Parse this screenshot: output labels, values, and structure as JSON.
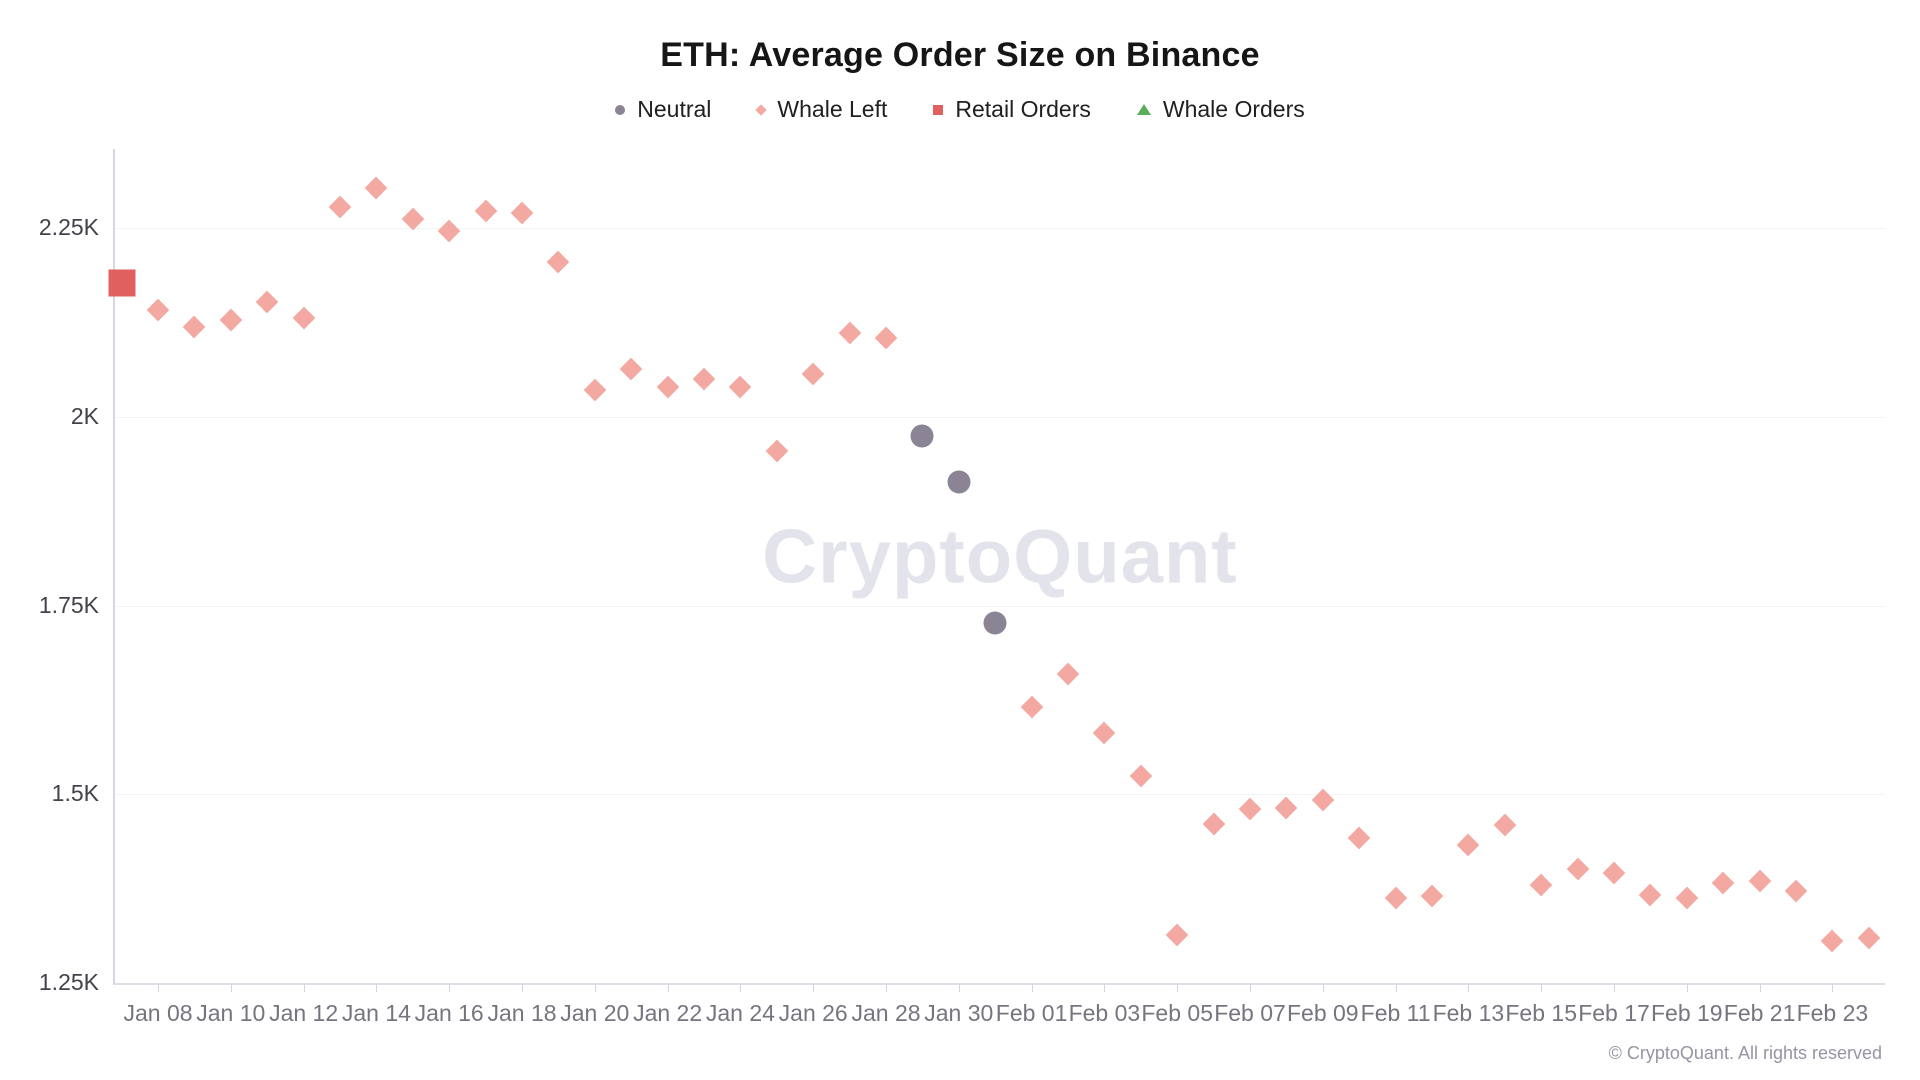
{
  "title": "ETH: Average Order Size on Binance",
  "watermark": "CryptoQuant",
  "footer": {
    "copyright": "© CryptoQuant. All rights reserved"
  },
  "legend": {
    "items": [
      {
        "label": "Neutral",
        "marker": "circle",
        "color": "#8a8494"
      },
      {
        "label": "Whale Left",
        "marker": "diamond",
        "color": "#f3a9a2"
      },
      {
        "label": "Retail Orders",
        "marker": "square",
        "color": "#e06060"
      },
      {
        "label": "Whale Orders",
        "marker": "triangle",
        "color": "#5aad5a"
      }
    ]
  },
  "chart_data": {
    "type": "scatter",
    "title": "ETH: Average Order Size on Binance",
    "ylabel": "",
    "xlabel": "",
    "grid": "horizontal-only",
    "legend_position": "top-center",
    "y_axis": {
      "tick_labels": [
        "2.25K",
        "2K",
        "1.75K",
        "1.5K",
        "1.25K"
      ],
      "tick_values": [
        2250,
        2000,
        1750,
        1500,
        1250
      ],
      "range": [
        1250,
        2355
      ]
    },
    "x_axis": {
      "tick_labels": [
        "Jan 08",
        "Jan 10",
        "Jan 12",
        "Jan 14",
        "Jan 16",
        "Jan 18",
        "Jan 20",
        "Jan 22",
        "Jan 24",
        "Jan 26",
        "Jan 28",
        "Jan 30",
        "Feb 01",
        "Feb 03",
        "Feb 05",
        "Feb 07",
        "Feb 09",
        "Feb 11",
        "Feb 13",
        "Feb 15",
        "Feb 17",
        "Feb 19",
        "Feb 21",
        "Feb 23"
      ],
      "tick_interval_days": 2,
      "data_range": [
        "Jan 07",
        "Feb 24"
      ]
    },
    "series": [
      {
        "name": "Retail Orders",
        "marker": "square",
        "color": "#e06060",
        "points": [
          {
            "date": "Jan 07",
            "value": 2177
          }
        ]
      },
      {
        "name": "Whale Left",
        "marker": "diamond",
        "color": "#f3a9a2",
        "points": [
          {
            "date": "Jan 08",
            "value": 2141
          },
          {
            "date": "Jan 09",
            "value": 2119
          },
          {
            "date": "Jan 10",
            "value": 2128
          },
          {
            "date": "Jan 11",
            "value": 2152
          },
          {
            "date": "Jan 12",
            "value": 2131
          },
          {
            "date": "Jan 13",
            "value": 2278
          },
          {
            "date": "Jan 14",
            "value": 2303
          },
          {
            "date": "Jan 15",
            "value": 2262
          },
          {
            "date": "Jan 16",
            "value": 2246
          },
          {
            "date": "Jan 17",
            "value": 2272
          },
          {
            "date": "Jan 18",
            "value": 2270
          },
          {
            "date": "Jan 19",
            "value": 2205
          },
          {
            "date": "Jan 20",
            "value": 2036
          },
          {
            "date": "Jan 21",
            "value": 2063
          },
          {
            "date": "Jan 22",
            "value": 2039
          },
          {
            "date": "Jan 23",
            "value": 2050
          },
          {
            "date": "Jan 24",
            "value": 2039
          },
          {
            "date": "Jan 25",
            "value": 1955
          },
          {
            "date": "Jan 26",
            "value": 2056
          },
          {
            "date": "Jan 27",
            "value": 2111
          },
          {
            "date": "Jan 28",
            "value": 2104
          },
          {
            "date": "Feb 01",
            "value": 1615
          },
          {
            "date": "Feb 02",
            "value": 1659
          },
          {
            "date": "Feb 03",
            "value": 1581
          },
          {
            "date": "Feb 04",
            "value": 1524
          },
          {
            "date": "Feb 05",
            "value": 1314
          },
          {
            "date": "Feb 06",
            "value": 1461
          },
          {
            "date": "Feb 07",
            "value": 1481
          },
          {
            "date": "Feb 08",
            "value": 1482
          },
          {
            "date": "Feb 09",
            "value": 1493
          },
          {
            "date": "Feb 10",
            "value": 1442
          },
          {
            "date": "Feb 11",
            "value": 1363
          },
          {
            "date": "Feb 12",
            "value": 1365
          },
          {
            "date": "Feb 13",
            "value": 1433
          },
          {
            "date": "Feb 14",
            "value": 1459
          },
          {
            "date": "Feb 15",
            "value": 1380
          },
          {
            "date": "Feb 16",
            "value": 1401
          },
          {
            "date": "Feb 17",
            "value": 1396
          },
          {
            "date": "Feb 18",
            "value": 1367
          },
          {
            "date": "Feb 19",
            "value": 1363
          },
          {
            "date": "Feb 20",
            "value": 1382
          },
          {
            "date": "Feb 21",
            "value": 1385
          },
          {
            "date": "Feb 22",
            "value": 1372
          },
          {
            "date": "Feb 23",
            "value": 1305
          },
          {
            "date": "Feb 24",
            "value": 1310
          }
        ]
      },
      {
        "name": "Neutral",
        "marker": "circle",
        "color": "#8a8494",
        "points": [
          {
            "date": "Jan 29",
            "value": 1975
          },
          {
            "date": "Jan 30",
            "value": 1913
          },
          {
            "date": "Jan 31",
            "value": 1727
          }
        ]
      },
      {
        "name": "Whale Orders",
        "marker": "triangle",
        "color": "#5aad5a",
        "points": []
      }
    ]
  }
}
